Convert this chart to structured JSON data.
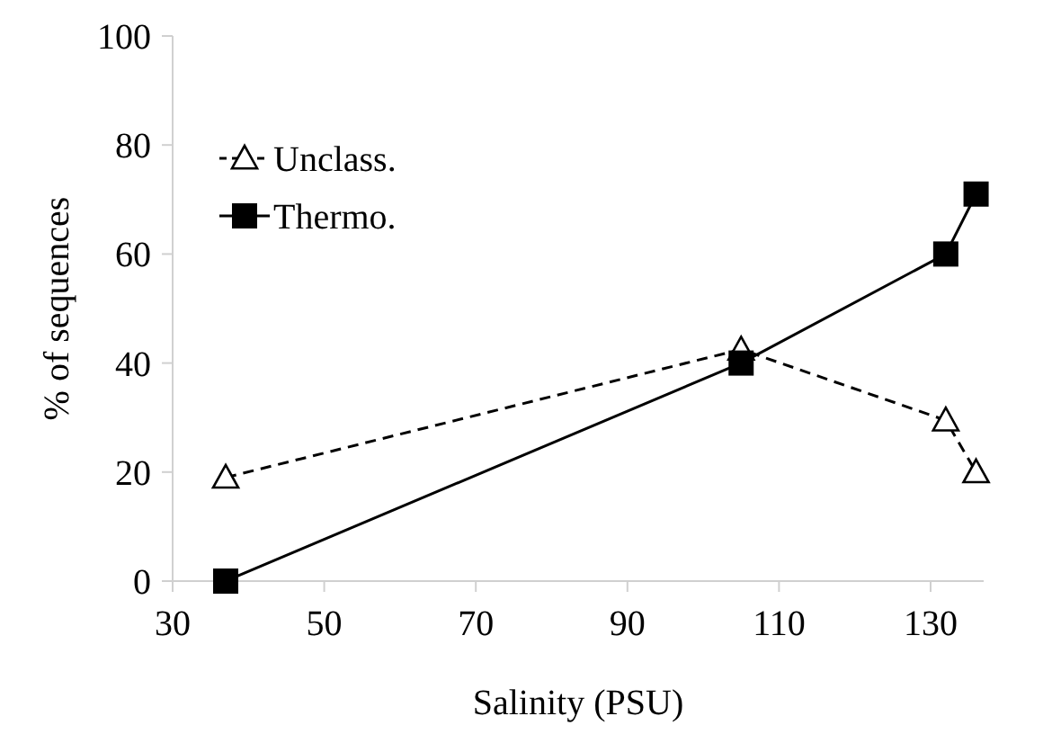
{
  "chart_data": {
    "type": "line",
    "xlabel": "Salinity (PSU)",
    "ylabel": "% of sequences",
    "xlim": [
      30,
      137
    ],
    "xticks": [
      30,
      50,
      70,
      90,
      110,
      130
    ],
    "ylim": [
      0,
      100
    ],
    "yticks": [
      0,
      20,
      40,
      60,
      80,
      100
    ],
    "legend": "top left",
    "grid": false,
    "series": [
      {
        "name": "Unclass.",
        "color": "#000000",
        "x": [
          37,
          105,
          132,
          136
        ],
        "values": [
          19,
          42.5,
          29.5,
          20
        ],
        "marker": "triangle",
        "line_style": "dashed"
      },
      {
        "name": "Thermo.",
        "color": "#000000",
        "x": [
          37,
          105,
          132,
          136
        ],
        "values": [
          0,
          40,
          60,
          71
        ],
        "marker": "square",
        "line_style": "solid"
      }
    ]
  }
}
